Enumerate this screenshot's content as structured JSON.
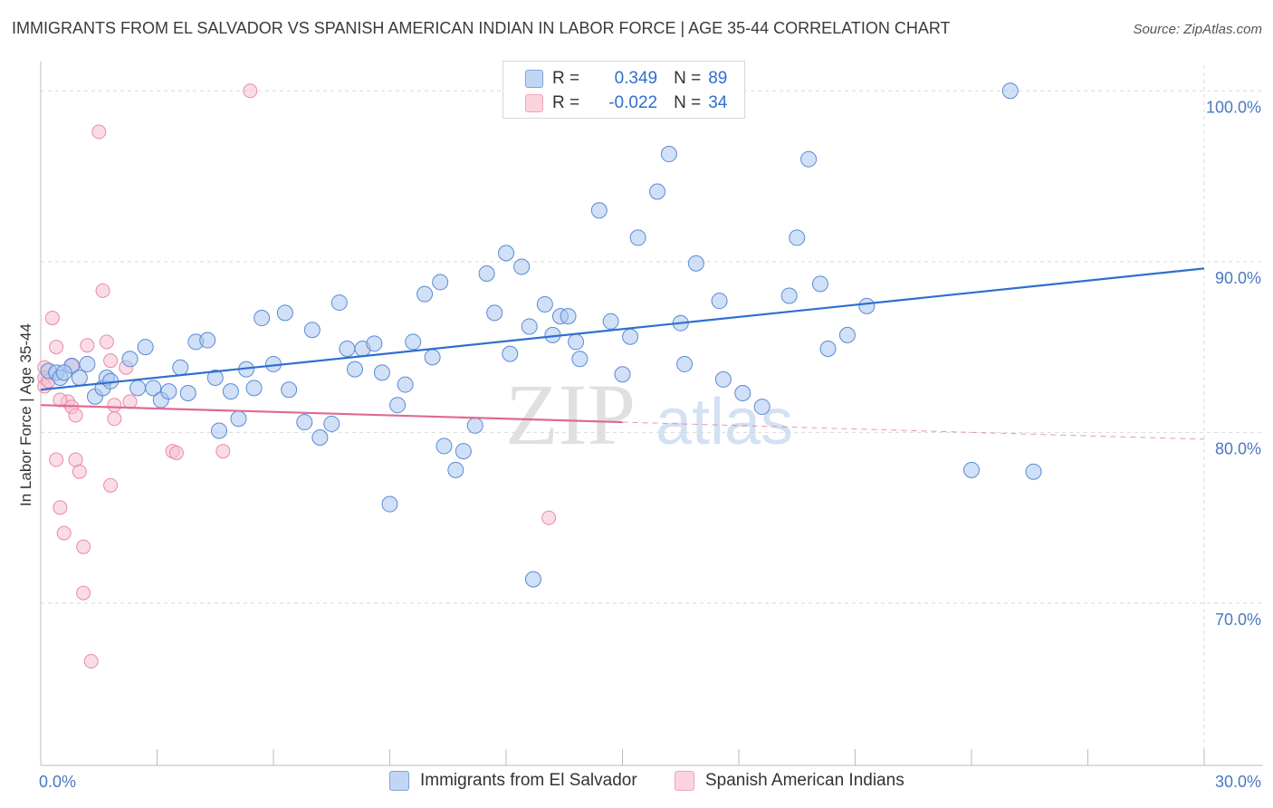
{
  "title": "IMMIGRANTS FROM EL SALVADOR VS SPANISH AMERICAN INDIAN IN LABOR FORCE | AGE 35-44 CORRELATION CHART",
  "source": "Source: ZipAtlas.com",
  "watermark": {
    "zip": "ZIP",
    "atlas": "atlas"
  },
  "legend": {
    "r_label": "R =",
    "n_label": "N =",
    "rows": [
      {
        "r": "0.349",
        "n": "89"
      },
      {
        "r": "-0.022",
        "n": "34"
      }
    ]
  },
  "chart_data": {
    "type": "scatter",
    "ylabel": "In Labor Force | Age 35-44",
    "xlim": [
      0,
      30
    ],
    "ylim": [
      60.5,
      101.5
    ],
    "x_tick_labels": [
      {
        "value": 0,
        "label": "0.0%"
      },
      {
        "value": 30,
        "label": "30.0%"
      }
    ],
    "y_tick_labels": [
      {
        "value": 100,
        "label": "100.0%"
      },
      {
        "value": 90,
        "label": "90.0%"
      },
      {
        "value": 80,
        "label": "80.0%"
      },
      {
        "value": 70,
        "label": "70.0%"
      }
    ],
    "x_minor_ticks": [
      0,
      3,
      6,
      9,
      12,
      15,
      18,
      21,
      24,
      27,
      30
    ],
    "grid": true,
    "colors": {
      "blue_fill": "#a9c6ee",
      "blue_stroke": "#5a8ad6",
      "blue_line": "#2f6fcf",
      "pink_fill": "#f6bfd0",
      "pink_stroke": "#e98aa7",
      "pink_line": "#e06a92",
      "tick_text": "#4a78c2"
    },
    "series": [
      {
        "name": "Immigrants from El Salvador",
        "color": "blue",
        "trend": {
          "x": [
            0,
            30
          ],
          "y": [
            82.5,
            89.6
          ],
          "solid_to": 30
        },
        "points": [
          [
            0.2,
            83.6
          ],
          [
            0.4,
            83.5
          ],
          [
            0.5,
            83.2
          ],
          [
            0.8,
            83.9
          ],
          [
            1.0,
            83.2
          ],
          [
            1.2,
            84.0
          ],
          [
            1.4,
            82.1
          ],
          [
            1.6,
            82.6
          ],
          [
            1.7,
            83.2
          ],
          [
            1.8,
            83.0
          ],
          [
            2.3,
            84.3
          ],
          [
            2.5,
            82.6
          ],
          [
            2.7,
            85.0
          ],
          [
            2.9,
            82.6
          ],
          [
            3.1,
            81.9
          ],
          [
            3.3,
            82.4
          ],
          [
            3.6,
            83.8
          ],
          [
            3.8,
            82.3
          ],
          [
            4.0,
            85.3
          ],
          [
            4.3,
            85.4
          ],
          [
            4.5,
            83.2
          ],
          [
            4.6,
            80.1
          ],
          [
            4.9,
            82.4
          ],
          [
            5.1,
            80.8
          ],
          [
            5.3,
            83.7
          ],
          [
            5.5,
            82.6
          ],
          [
            5.7,
            86.7
          ],
          [
            6.0,
            84.0
          ],
          [
            6.3,
            87.0
          ],
          [
            6.4,
            82.5
          ],
          [
            6.8,
            80.6
          ],
          [
            7.0,
            86.0
          ],
          [
            7.2,
            79.7
          ],
          [
            7.5,
            80.5
          ],
          [
            7.7,
            87.6
          ],
          [
            7.9,
            84.9
          ],
          [
            8.1,
            83.7
          ],
          [
            8.3,
            84.9
          ],
          [
            8.6,
            85.2
          ],
          [
            8.8,
            83.5
          ],
          [
            9.0,
            75.8
          ],
          [
            9.2,
            81.6
          ],
          [
            9.4,
            82.8
          ],
          [
            9.6,
            85.3
          ],
          [
            9.9,
            88.1
          ],
          [
            10.1,
            84.4
          ],
          [
            10.3,
            88.8
          ],
          [
            10.4,
            79.2
          ],
          [
            10.7,
            77.8
          ],
          [
            10.9,
            78.9
          ],
          [
            11.2,
            80.4
          ],
          [
            11.5,
            89.3
          ],
          [
            11.7,
            87.0
          ],
          [
            12.0,
            90.5
          ],
          [
            12.1,
            84.6
          ],
          [
            12.4,
            89.7
          ],
          [
            12.6,
            86.2
          ],
          [
            12.7,
            71.4
          ],
          [
            13.0,
            87.5
          ],
          [
            13.2,
            85.7
          ],
          [
            13.4,
            86.8
          ],
          [
            13.6,
            86.8
          ],
          [
            13.8,
            85.3
          ],
          [
            13.9,
            84.3
          ],
          [
            14.4,
            93.0
          ],
          [
            14.7,
            86.5
          ],
          [
            15.0,
            83.4
          ],
          [
            15.2,
            85.6
          ],
          [
            15.4,
            91.4
          ],
          [
            15.9,
            94.1
          ],
          [
            16.2,
            96.3
          ],
          [
            16.5,
            86.4
          ],
          [
            16.6,
            84.0
          ],
          [
            16.9,
            89.9
          ],
          [
            17.5,
            87.7
          ],
          [
            17.6,
            83.1
          ],
          [
            18.1,
            82.3
          ],
          [
            18.6,
            81.5
          ],
          [
            19.3,
            88.0
          ],
          [
            19.5,
            91.4
          ],
          [
            19.8,
            96.0
          ],
          [
            20.1,
            88.7
          ],
          [
            20.3,
            84.9
          ],
          [
            20.8,
            85.7
          ],
          [
            21.3,
            87.4
          ],
          [
            24.0,
            77.8
          ],
          [
            25.0,
            100.0
          ],
          [
            25.6,
            77.7
          ],
          [
            0.6,
            83.5
          ]
        ]
      },
      {
        "name": "Spanish American Indians",
        "color": "pink",
        "trend": {
          "x": [
            0,
            30
          ],
          "y": [
            81.6,
            79.6
          ],
          "solid_to": 15
        },
        "points": [
          [
            0.1,
            83.8
          ],
          [
            0.1,
            83.2
          ],
          [
            0.1,
            82.7
          ],
          [
            0.3,
            86.7
          ],
          [
            0.4,
            85.0
          ],
          [
            0.4,
            78.4
          ],
          [
            0.5,
            75.6
          ],
          [
            0.6,
            74.1
          ],
          [
            0.7,
            81.8
          ],
          [
            0.8,
            83.9
          ],
          [
            0.8,
            81.5
          ],
          [
            0.9,
            78.4
          ],
          [
            0.9,
            81.0
          ],
          [
            1.0,
            77.7
          ],
          [
            1.1,
            73.3
          ],
          [
            1.1,
            70.6
          ],
          [
            1.2,
            85.1
          ],
          [
            1.3,
            66.6
          ],
          [
            1.5,
            97.6
          ],
          [
            1.6,
            88.3
          ],
          [
            1.7,
            85.3
          ],
          [
            1.8,
            84.2
          ],
          [
            1.8,
            76.9
          ],
          [
            1.9,
            80.8
          ],
          [
            1.9,
            81.6
          ],
          [
            2.2,
            83.8
          ],
          [
            2.3,
            81.8
          ],
          [
            3.4,
            78.9
          ],
          [
            3.5,
            78.8
          ],
          [
            4.7,
            78.9
          ],
          [
            5.4,
            100.0
          ],
          [
            13.1,
            75.0
          ],
          [
            0.5,
            81.9
          ],
          [
            0.2,
            83.0
          ]
        ]
      }
    ]
  }
}
